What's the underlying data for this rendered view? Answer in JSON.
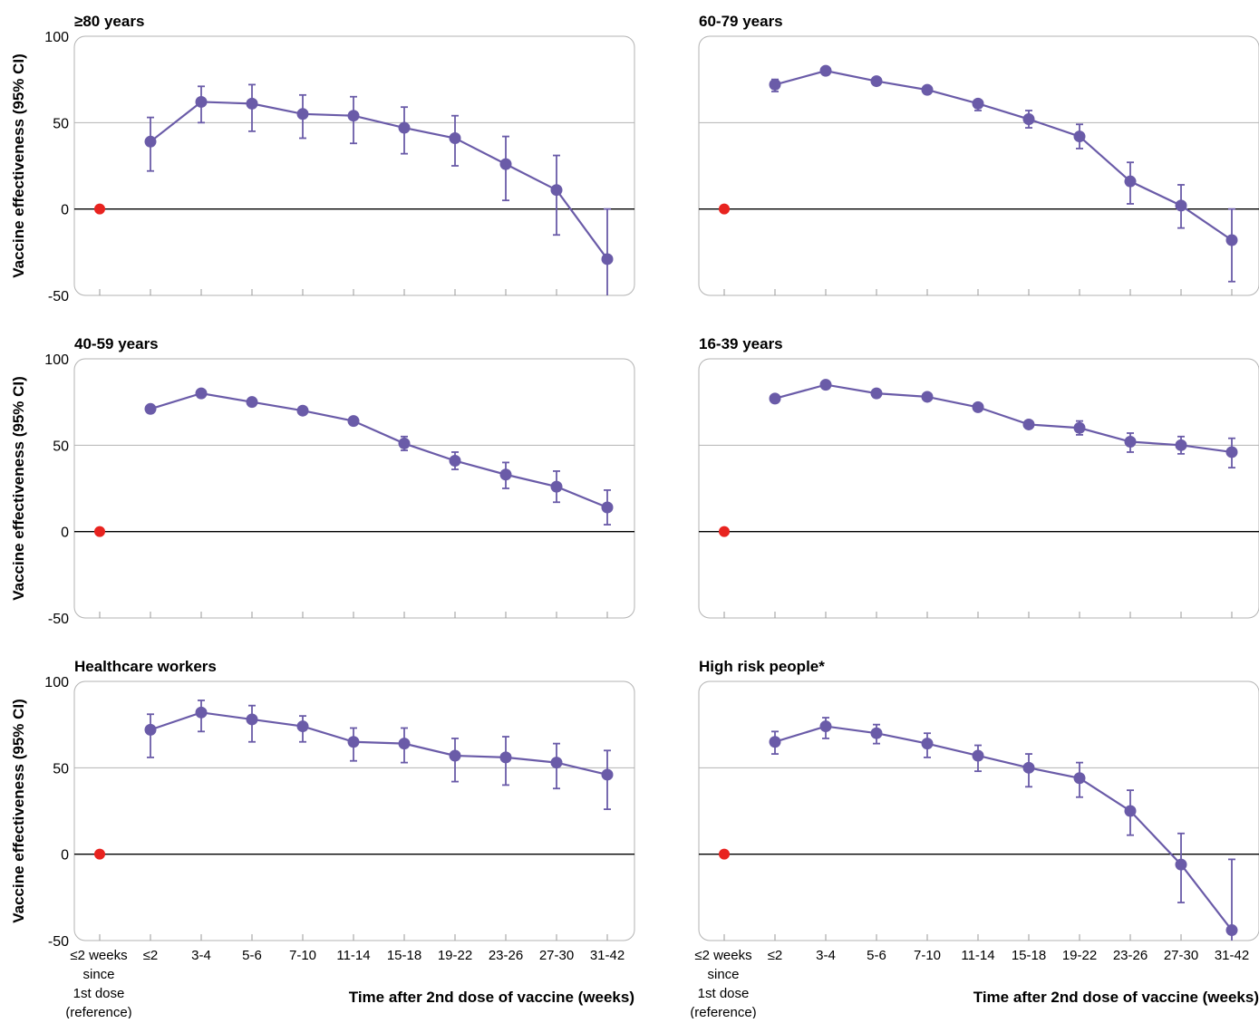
{
  "chart_data": {
    "type": "line",
    "ylabel": "Vaccine effectiveness (95% CI)",
    "xlabel": "Time after 2nd dose of vaccine (weeks)",
    "ylim": [
      -50,
      100
    ],
    "yticks": [
      "100",
      "50",
      "0",
      "-50"
    ],
    "categories": [
      "≤2 weeks since 1st dose (reference)",
      "≤2",
      "3-4",
      "5-6",
      "7-10",
      "11-14",
      "15-18",
      "19-22",
      "23-26",
      "27-30",
      "31-42"
    ],
    "reference_label_lines": [
      "≤2 weeks",
      "since",
      "1st dose",
      "(reference)"
    ],
    "reference_value": 0,
    "colors": {
      "series": "#6a5ba8",
      "reference": "#e8231f",
      "zero_line": "#000000",
      "grid": "#b3b3b3",
      "frame": "#b3b3b3"
    },
    "panels": [
      {
        "title": "≥80 years",
        "values": [
          39,
          62,
          61,
          55,
          54,
          47,
          41,
          26,
          11,
          -29
        ],
        "lower": [
          22,
          50,
          45,
          41,
          38,
          32,
          25,
          5,
          -15,
          -50
        ],
        "upper": [
          53,
          71,
          72,
          66,
          65,
          59,
          54,
          42,
          31,
          0
        ]
      },
      {
        "title": "60-79 years",
        "values": [
          72,
          80,
          74,
          69,
          61,
          52,
          42,
          16,
          2,
          -18
        ],
        "lower": [
          68,
          78,
          72,
          67,
          57,
          47,
          35,
          3,
          -11,
          -42
        ],
        "upper": [
          75,
          82,
          76,
          71,
          63,
          57,
          49,
          27,
          14,
          0
        ]
      },
      {
        "title": "40-59 years",
        "values": [
          71,
          80,
          75,
          70,
          64,
          51,
          41,
          33,
          26,
          14
        ],
        "lower": [
          69,
          79,
          74,
          69,
          62,
          47,
          36,
          25,
          17,
          4
        ],
        "upper": [
          73,
          81,
          76,
          71,
          66,
          55,
          46,
          40,
          35,
          24
        ]
      },
      {
        "title": "16-39 years",
        "values": [
          77,
          85,
          80,
          78,
          72,
          62,
          60,
          52,
          50,
          46
        ],
        "lower": [
          76,
          84,
          79,
          77,
          71,
          60,
          56,
          46,
          45,
          37
        ],
        "upper": [
          78,
          86,
          81,
          79,
          73,
          64,
          64,
          57,
          55,
          54
        ]
      },
      {
        "title": "Healthcare workers",
        "values": [
          72,
          82,
          78,
          74,
          65,
          64,
          57,
          56,
          53,
          46
        ],
        "lower": [
          56,
          71,
          65,
          65,
          54,
          53,
          42,
          40,
          38,
          26
        ],
        "upper": [
          81,
          89,
          86,
          80,
          73,
          73,
          67,
          68,
          64,
          60
        ]
      },
      {
        "title": "High risk people*",
        "values": [
          65,
          74,
          70,
          64,
          57,
          50,
          44,
          25,
          -6,
          -44
        ],
        "lower": [
          58,
          67,
          64,
          56,
          48,
          39,
          33,
          11,
          -28,
          -50
        ],
        "upper": [
          71,
          79,
          75,
          70,
          63,
          58,
          53,
          37,
          12,
          -3
        ]
      }
    ]
  }
}
